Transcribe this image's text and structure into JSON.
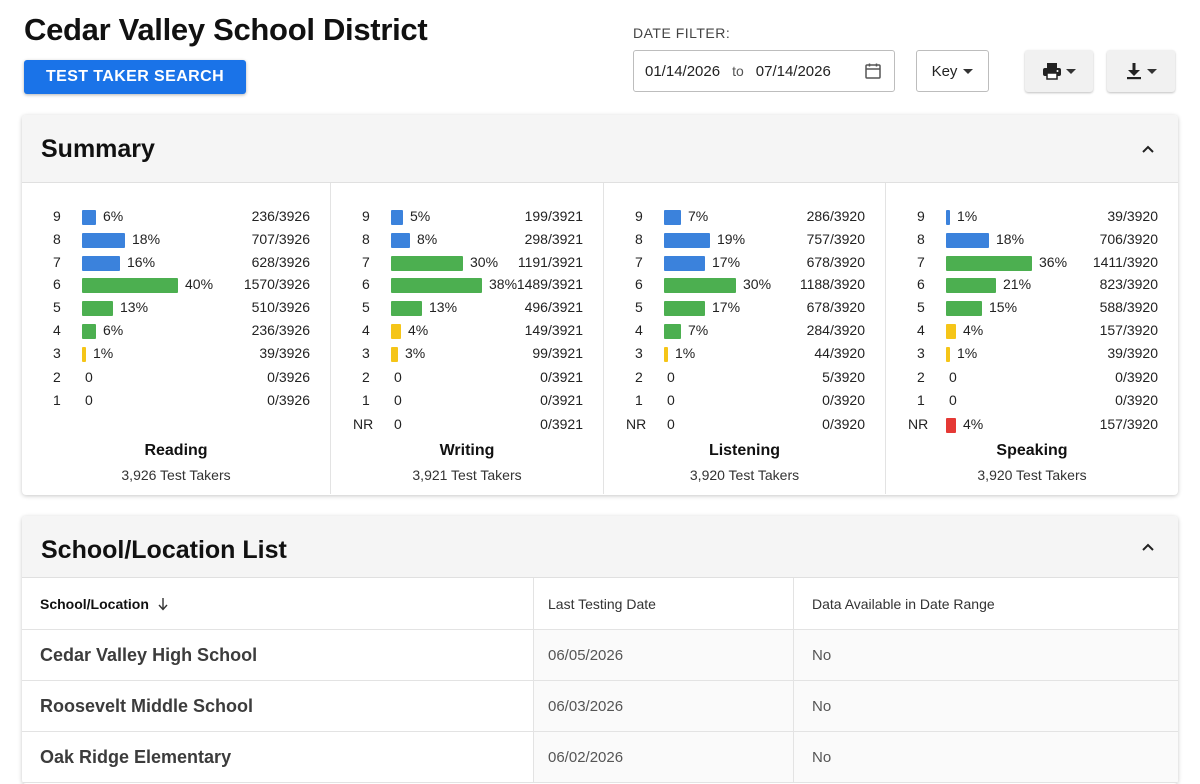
{
  "header": {
    "title": "Cedar Valley School District",
    "search_button": "TEST TAKER SEARCH",
    "date_filter_label": "DATE FILTER:",
    "date_from": "01/14/2026",
    "date_to_word": "to",
    "date_to": "07/14/2026",
    "key_label": "Key"
  },
  "icons": {
    "calendar": "calendar-icon",
    "print": "print-icon",
    "download": "download-icon",
    "chevron": "chevron-up-icon",
    "sort": "arrow-down-icon"
  },
  "colors": {
    "accent": "#1a73e8",
    "blue_bar": "#3b82dc",
    "green_bar": "#4caf50",
    "yellow_bar": "#f5c518",
    "red_bar": "#e53935"
  },
  "summary": {
    "title": "Summary",
    "columns": [
      {
        "name": "Reading",
        "takers": "3,926 Test Takers",
        "rows": [
          {
            "score": "9",
            "pct": "6%",
            "value": 6,
            "count": "236/3926",
            "color": "blue"
          },
          {
            "score": "8",
            "pct": "18%",
            "value": 18,
            "count": "707/3926",
            "color": "blue"
          },
          {
            "score": "7",
            "pct": "16%",
            "value": 16,
            "count": "628/3926",
            "color": "blue"
          },
          {
            "score": "6",
            "pct": "40%",
            "value": 40,
            "count": "1570/3926",
            "color": "green"
          },
          {
            "score": "5",
            "pct": "13%",
            "value": 13,
            "count": "510/3926",
            "color": "green"
          },
          {
            "score": "4",
            "pct": "6%",
            "value": 6,
            "count": "236/3926",
            "color": "green"
          },
          {
            "score": "3",
            "pct": "1%",
            "value": 1,
            "count": "39/3926",
            "color": "yellow"
          },
          {
            "score": "2",
            "pct": "0",
            "value": 0,
            "count": "0/3926",
            "color": "none"
          },
          {
            "score": "1",
            "pct": "0",
            "value": 0,
            "count": "0/3926",
            "color": "none"
          }
        ]
      },
      {
        "name": "Writing",
        "takers": "3,921 Test Takers",
        "rows": [
          {
            "score": "9",
            "pct": "5%",
            "value": 5,
            "count": "199/3921",
            "color": "blue"
          },
          {
            "score": "8",
            "pct": "8%",
            "value": 8,
            "count": "298/3921",
            "color": "blue"
          },
          {
            "score": "7",
            "pct": "30%",
            "value": 30,
            "count": "1191/3921",
            "color": "green"
          },
          {
            "score": "6",
            "pct": "38%",
            "value": 38,
            "count": "1489/3921",
            "color": "green"
          },
          {
            "score": "5",
            "pct": "13%",
            "value": 13,
            "count": "496/3921",
            "color": "green"
          },
          {
            "score": "4",
            "pct": "4%",
            "value": 4,
            "count": "149/3921",
            "color": "yellow"
          },
          {
            "score": "3",
            "pct": "3%",
            "value": 3,
            "count": "99/3921",
            "color": "yellow"
          },
          {
            "score": "2",
            "pct": "0",
            "value": 0,
            "count": "0/3921",
            "color": "none"
          },
          {
            "score": "1",
            "pct": "0",
            "value": 0,
            "count": "0/3921",
            "color": "none"
          },
          {
            "score": "NR",
            "pct": "0",
            "value": 0,
            "count": "0/3921",
            "color": "none"
          }
        ]
      },
      {
        "name": "Listening",
        "takers": "3,920 Test Takers",
        "rows": [
          {
            "score": "9",
            "pct": "7%",
            "value": 7,
            "count": "286/3920",
            "color": "blue"
          },
          {
            "score": "8",
            "pct": "19%",
            "value": 19,
            "count": "757/3920",
            "color": "blue"
          },
          {
            "score": "7",
            "pct": "17%",
            "value": 17,
            "count": "678/3920",
            "color": "blue"
          },
          {
            "score": "6",
            "pct": "30%",
            "value": 30,
            "count": "1188/3920",
            "color": "green"
          },
          {
            "score": "5",
            "pct": "17%",
            "value": 17,
            "count": "678/3920",
            "color": "green"
          },
          {
            "score": "4",
            "pct": "7%",
            "value": 7,
            "count": "284/3920",
            "color": "green"
          },
          {
            "score": "3",
            "pct": "1%",
            "value": 1,
            "count": "44/3920",
            "color": "yellow"
          },
          {
            "score": "2",
            "pct": "0",
            "value": 0,
            "count": "5/3920",
            "color": "none"
          },
          {
            "score": "1",
            "pct": "0",
            "value": 0,
            "count": "0/3920",
            "color": "none"
          },
          {
            "score": "NR",
            "pct": "0",
            "value": 0,
            "count": "0/3920",
            "color": "none"
          }
        ]
      },
      {
        "name": "Speaking",
        "takers": "3,920 Test Takers",
        "rows": [
          {
            "score": "9",
            "pct": "1%",
            "value": 1,
            "count": "39/3920",
            "color": "blue"
          },
          {
            "score": "8",
            "pct": "18%",
            "value": 18,
            "count": "706/3920",
            "color": "blue"
          },
          {
            "score": "7",
            "pct": "36%",
            "value": 36,
            "count": "1411/3920",
            "color": "green"
          },
          {
            "score": "6",
            "pct": "21%",
            "value": 21,
            "count": "823/3920",
            "color": "green"
          },
          {
            "score": "5",
            "pct": "15%",
            "value": 15,
            "count": "588/3920",
            "color": "green"
          },
          {
            "score": "4",
            "pct": "4%",
            "value": 4,
            "count": "157/3920",
            "color": "yellow"
          },
          {
            "score": "3",
            "pct": "1%",
            "value": 1,
            "count": "39/3920",
            "color": "yellow"
          },
          {
            "score": "2",
            "pct": "0",
            "value": 0,
            "count": "0/3920",
            "color": "none"
          },
          {
            "score": "1",
            "pct": "0",
            "value": 0,
            "count": "0/3920",
            "color": "none"
          },
          {
            "score": "NR",
            "pct": "4%",
            "value": 4,
            "count": "157/3920",
            "color": "red"
          }
        ]
      }
    ]
  },
  "school_list": {
    "title": "School/Location List",
    "columns": [
      "School/Location",
      "Last Testing Date",
      "Data Available in Date Range"
    ],
    "rows": [
      {
        "school": "Cedar Valley High School",
        "date": "06/05/2026",
        "available": "No"
      },
      {
        "school": "Roosevelt Middle School",
        "date": "06/03/2026",
        "available": "No"
      },
      {
        "school": "Oak Ridge Elementary",
        "date": "06/02/2026",
        "available": "No"
      }
    ]
  }
}
